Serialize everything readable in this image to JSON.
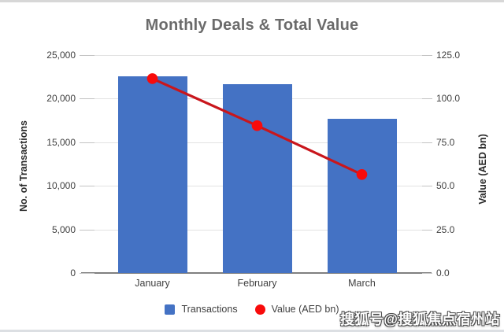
{
  "watermark": {
    "text": "搜狐号@搜狐焦点宿州站"
  },
  "colors": {
    "bar": "#4472c4",
    "line": "#c9161c",
    "marker": "#f80b0b",
    "title_text": "#6b6b6b",
    "gridline": "#e2e2e2",
    "axis_line": "#7f7f7f"
  },
  "chart_data": {
    "type": "bar",
    "subtype": "combo-bar-line",
    "title": "Monthly Deals & Total Value",
    "categories": [
      "January",
      "February",
      "March"
    ],
    "series": [
      {
        "name": "Transactions",
        "type": "bar",
        "axis": "left",
        "color": "#4472c4",
        "values": [
          22600,
          21700,
          17700
        ]
      },
      {
        "name": "Value (AED bn)",
        "type": "line",
        "axis": "right",
        "color": "#c9161c",
        "marker_color": "#f80b0b",
        "values": [
          111.5,
          84.5,
          56.5
        ]
      }
    ],
    "left_axis": {
      "label": "No. of Transactions",
      "min": 0,
      "max": 25000,
      "step": 5000,
      "tick_labels": [
        "0",
        "5,000",
        "10,000",
        "15,000",
        "20,000",
        "25,000"
      ]
    },
    "right_axis": {
      "label": "Value (AED bn)",
      "min": 0,
      "max": 125,
      "step": 25,
      "tick_labels": [
        "0.0",
        "25.0",
        "50.0",
        "75.0",
        "100.0",
        "125.0"
      ]
    },
    "legend": {
      "position": "bottom",
      "items": [
        "Transactions",
        "Value (AED bn)"
      ]
    },
    "grid": true
  }
}
